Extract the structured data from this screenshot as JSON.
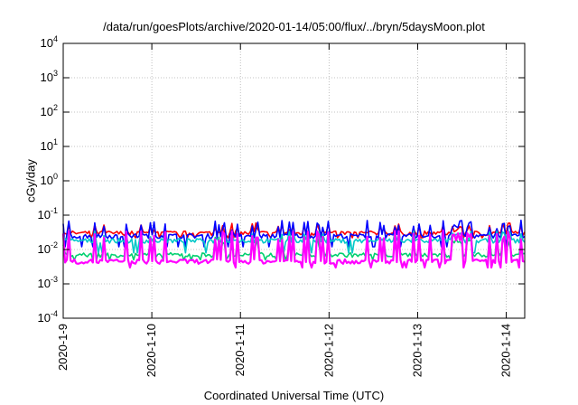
{
  "chart_data": {
    "type": "line",
    "title": "/data/run/goesPlots/archive/2020-01-14/05:00/flux/../bryn/5daysMoon.plot",
    "xlabel": "Coordinated Universal Time (UTC)",
    "ylabel": "cGy/day",
    "y_scale": "log",
    "ylim": [
      0.0001,
      10000
    ],
    "y_ticks": [
      {
        "value": 0.0001,
        "base": "10",
        "exp": "-4"
      },
      {
        "value": 0.001,
        "base": "10",
        "exp": "-3"
      },
      {
        "value": 0.01,
        "base": "10",
        "exp": "-2"
      },
      {
        "value": 0.1,
        "base": "10",
        "exp": "-1"
      },
      {
        "value": 1,
        "base": "10",
        "exp": "0"
      },
      {
        "value": 10,
        "base": "10",
        "exp": "1"
      },
      {
        "value": 100,
        "base": "10",
        "exp": "2"
      },
      {
        "value": 1000,
        "base": "10",
        "exp": "3"
      },
      {
        "value": 10000,
        "base": "10",
        "exp": "4"
      }
    ],
    "xlim": [
      "2020-01-09T00:00",
      "2020-01-14T05:00"
    ],
    "x_ticks": [
      "2020-1-9",
      "2020-1-10",
      "2020-1-11",
      "2020-1-12",
      "2020-1-13",
      "2020-1-14"
    ],
    "grid": true,
    "series": [
      {
        "color": "#ff0000",
        "base": 0.03,
        "spike": 0.05,
        "dip": 0.022
      },
      {
        "color": "#0000ff",
        "base": 0.025,
        "spike": 0.06,
        "dip": 0.012
      },
      {
        "color": "#00c8c8",
        "base": 0.018,
        "spike": 0.03,
        "dip": 0.008
      },
      {
        "color": "#00d070",
        "base": 0.007,
        "spike": 0.02,
        "dip": 0.005
      },
      {
        "color": "#ff00ff",
        "base": 0.0045,
        "spike": 0.03,
        "dip": 0.003
      }
    ]
  }
}
